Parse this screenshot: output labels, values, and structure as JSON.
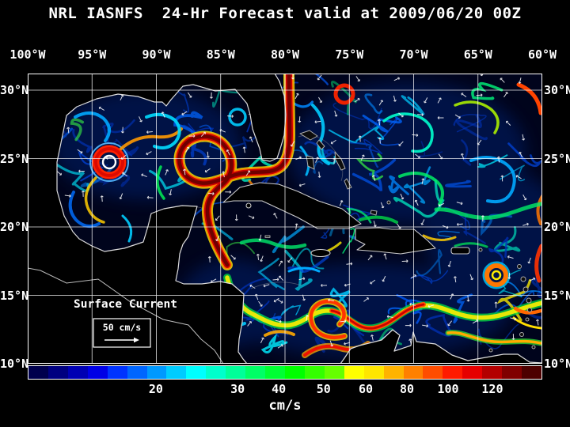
{
  "title": "NRL IASNFS  24-Hr Forecast valid at 2009/06/20 00Z",
  "axes": {
    "lon_labels": [
      "100°W",
      "95°W",
      "90°W",
      "85°W",
      "80°W",
      "75°W",
      "70°W",
      "65°W",
      "60°W"
    ],
    "lat_labels": [
      "30°N",
      "25°N",
      "20°N",
      "15°N",
      "10°N"
    ]
  },
  "map": {
    "annotation": "Surface Current",
    "scale_label": "50 cm/s"
  },
  "colorbar": {
    "unit": "cm/s",
    "ticks": [
      {
        "label": "20",
        "pos": 24.9
      },
      {
        "label": "30",
        "pos": 40.8
      },
      {
        "label": "40",
        "pos": 48.8
      },
      {
        "label": "50",
        "pos": 57.5
      },
      {
        "label": "60",
        "pos": 65.7
      },
      {
        "label": "80",
        "pos": 73.7
      },
      {
        "label": "100",
        "pos": 81.7
      },
      {
        "label": "120",
        "pos": 90.3
      }
    ],
    "colors": [
      "#00004d",
      "#000080",
      "#0000b3",
      "#0000e6",
      "#0033ff",
      "#0066ff",
      "#0099ff",
      "#00ccff",
      "#00ffff",
      "#00ffcc",
      "#00ff99",
      "#00ff66",
      "#00ff33",
      "#00ff00",
      "#33ff00",
      "#66ff00",
      "#ffff00",
      "#ffe600",
      "#ffb300",
      "#ff8000",
      "#ff4d00",
      "#ff1a00",
      "#e60000",
      "#b30000",
      "#800000",
      "#4d0000"
    ]
  }
}
